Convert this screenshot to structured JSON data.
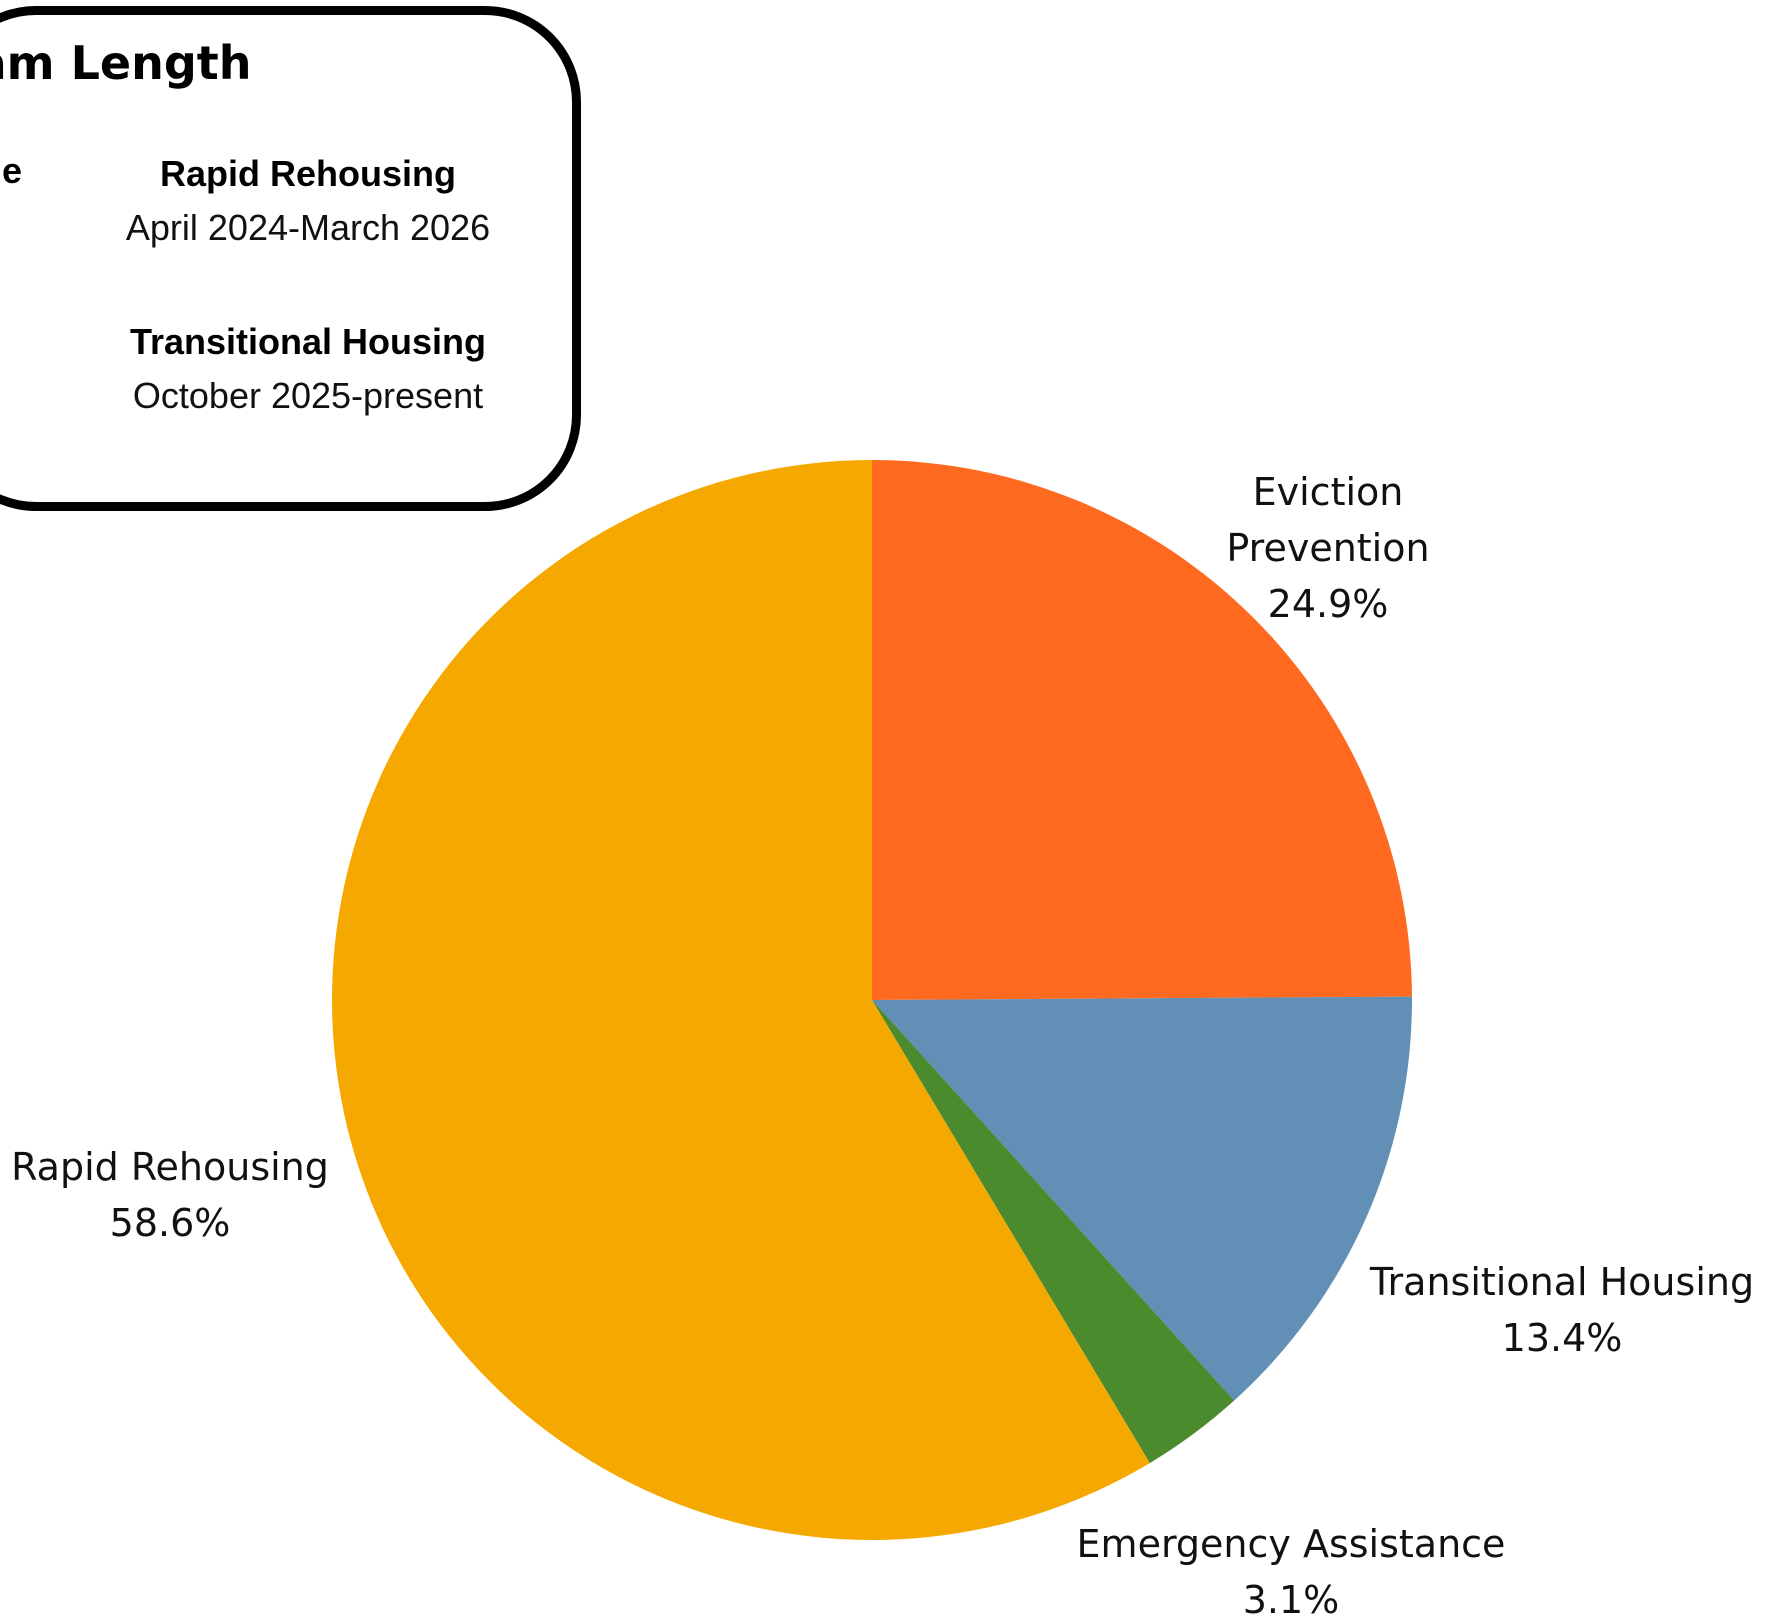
{
  "info_box": {
    "title": "gram Length",
    "left_col_fragment": "e",
    "items": [
      {
        "name": "Rapid Rehousing",
        "dates": "April 2024-March 2026"
      },
      {
        "name": "Transitional Housing",
        "dates": "October 2025-present"
      }
    ]
  },
  "chart_data": {
    "type": "pie",
    "slices": [
      {
        "label_lines": [
          "Eviction",
          "Prevention"
        ],
        "value": 24.9,
        "value_text": "24.9%",
        "color": "#FF6A20"
      },
      {
        "label_lines": [
          "Transitional Housing"
        ],
        "value": 13.4,
        "value_text": "13.4%",
        "color": "#618FB5"
      },
      {
        "label_lines": [
          "Emergency Assistance"
        ],
        "value": 3.1,
        "value_text": "3.1%",
        "color": "#4C8A2E"
      },
      {
        "label_lines": [
          "Rapid Rehousing"
        ],
        "value": 58.6,
        "value_text": "58.6%",
        "color": "#F5A800"
      }
    ],
    "start_angle": "12 o'clock",
    "direction": "clockwise"
  }
}
